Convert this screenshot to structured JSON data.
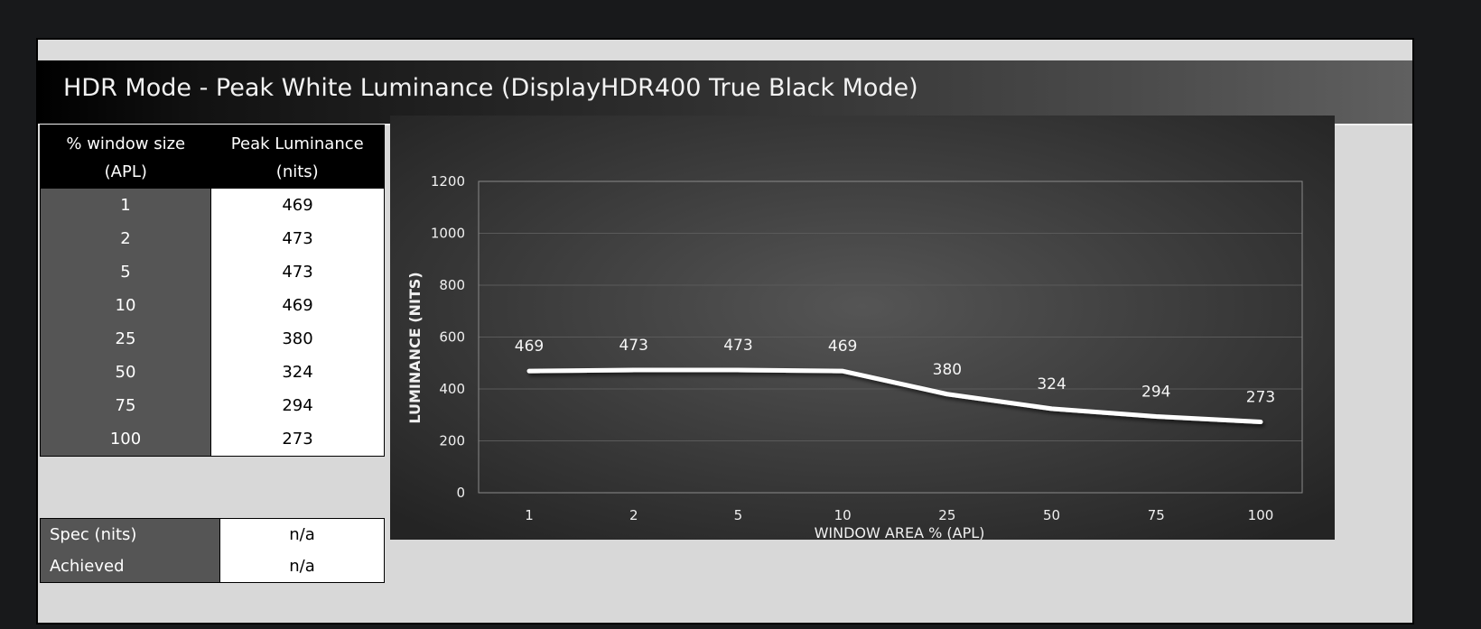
{
  "title": "HDR Mode - Peak White Luminance (DisplayHDR400 True Black Mode)",
  "table": {
    "headers": [
      "% window size (APL)",
      "Peak Luminance (nits)"
    ],
    "header_lines": [
      [
        "% window size",
        "(APL)"
      ],
      [
        "Peak Luminance",
        "(nits)"
      ]
    ],
    "rows": [
      {
        "window": "1",
        "luminance": "469"
      },
      {
        "window": "2",
        "luminance": "473"
      },
      {
        "window": "5",
        "luminance": "473"
      },
      {
        "window": "10",
        "luminance": "469"
      },
      {
        "window": "25",
        "luminance": "380"
      },
      {
        "window": "50",
        "luminance": "324"
      },
      {
        "window": "75",
        "luminance": "294"
      },
      {
        "window": "100",
        "luminance": "273"
      }
    ]
  },
  "spec": {
    "rows": [
      {
        "label": "Spec (nits)",
        "value": "n/a"
      },
      {
        "label": "Achieved",
        "value": "n/a"
      }
    ]
  },
  "chart_data": {
    "type": "line",
    "categories": [
      "1",
      "2",
      "5",
      "10",
      "25",
      "50",
      "75",
      "100"
    ],
    "series": [
      {
        "values": [
          469,
          473,
          473,
          469,
          380,
          324,
          294,
          273
        ]
      }
    ],
    "xlabel": "WINDOW AREA % (APL)",
    "ylabel": "LUMINANCE (NITS)",
    "ylim": [
      0,
      1200
    ],
    "yticks": [
      0,
      200,
      400,
      600,
      800,
      1000,
      1200
    ],
    "grid": true,
    "data_labels": true,
    "colors": {
      "line": "#ffffff",
      "background": "#2f2f2f",
      "gridline": "#5a5a5a"
    }
  }
}
